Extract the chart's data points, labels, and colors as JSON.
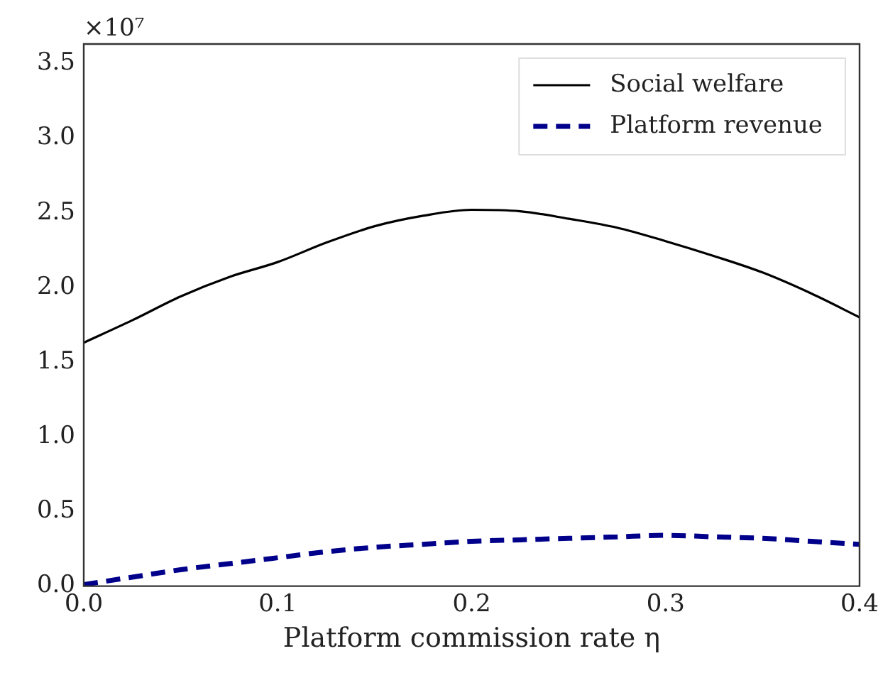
{
  "chart_data": {
    "type": "line",
    "xlabel": "Platform commission rate η",
    "annotations": [
      "×10⁷"
    ],
    "x": [
      0,
      0.025,
      0.05,
      0.075,
      0.1,
      0.125,
      0.15,
      0.175,
      0.2,
      0.225,
      0.25,
      0.275,
      0.3,
      0.325,
      0.35,
      0.375,
      0.4
    ],
    "series": [
      {
        "name": "Social welfare",
        "color": "#000000",
        "line_style": "solid",
        "values": [
          1.63,
          1.78,
          1.94,
          2.07,
          2.17,
          2.3,
          2.41,
          2.48,
          2.52,
          2.51,
          2.46,
          2.4,
          2.31,
          2.21,
          2.1,
          1.96,
          1.8
        ]
      },
      {
        "name": "Platform revenue",
        "color": "#00008b",
        "line_style": "dashed",
        "values": [
          0.01,
          0.06,
          0.11,
          0.15,
          0.19,
          0.23,
          0.26,
          0.28,
          0.3,
          0.31,
          0.32,
          0.33,
          0.34,
          0.33,
          0.32,
          0.3,
          0.28
        ]
      }
    ],
    "xlim": [
      0,
      0.4
    ],
    "xticks": [
      {
        "value": 0,
        "label": "0.0"
      },
      0.1,
      0.2,
      0.3,
      0.4
    ],
    "ylim": [
      0,
      3.63
    ],
    "yticks": [
      {
        "value": 0,
        "label": "0.0"
      },
      0.5,
      {
        "value": 1,
        "label": "1.0"
      },
      1.5,
      {
        "value": 2,
        "label": "2.0"
      },
      2.5,
      {
        "value": 3,
        "label": "3.0"
      },
      3.5
    ],
    "grid": false,
    "legend": "top right",
    "marker": "none"
  }
}
